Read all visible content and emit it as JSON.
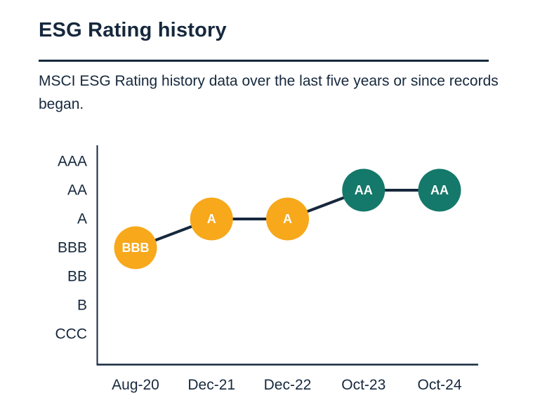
{
  "header": {
    "title": "ESG Rating history",
    "subtitle": "MSCI ESG Rating history data over the last five years or since records began."
  },
  "colors": {
    "text": "#16283d",
    "axis": "#16283d",
    "connector_line": "#16283d",
    "rating_yellow": "#F7A81B",
    "rating_teal": "#14796A",
    "marker_text": "#ffffff"
  },
  "chart_data": {
    "type": "line",
    "title": "ESG Rating history",
    "x": [
      "Aug-20",
      "Dec-21",
      "Dec-22",
      "Oct-23",
      "Oct-24"
    ],
    "values": [
      "BBB",
      "A",
      "A",
      "AA",
      "AA"
    ],
    "point_colors": [
      "#F7A81B",
      "#F7A81B",
      "#F7A81B",
      "#14796A",
      "#14796A"
    ],
    "y_categories_top_to_bottom": [
      "AAA",
      "AA",
      "A",
      "BBB",
      "BB",
      "B",
      "CCC"
    ],
    "xlabel": "",
    "ylabel": "",
    "grid": false,
    "legend": false,
    "line_color": "#16283d",
    "axis_color": "#16283d",
    "marker_text_color": "#ffffff"
  }
}
